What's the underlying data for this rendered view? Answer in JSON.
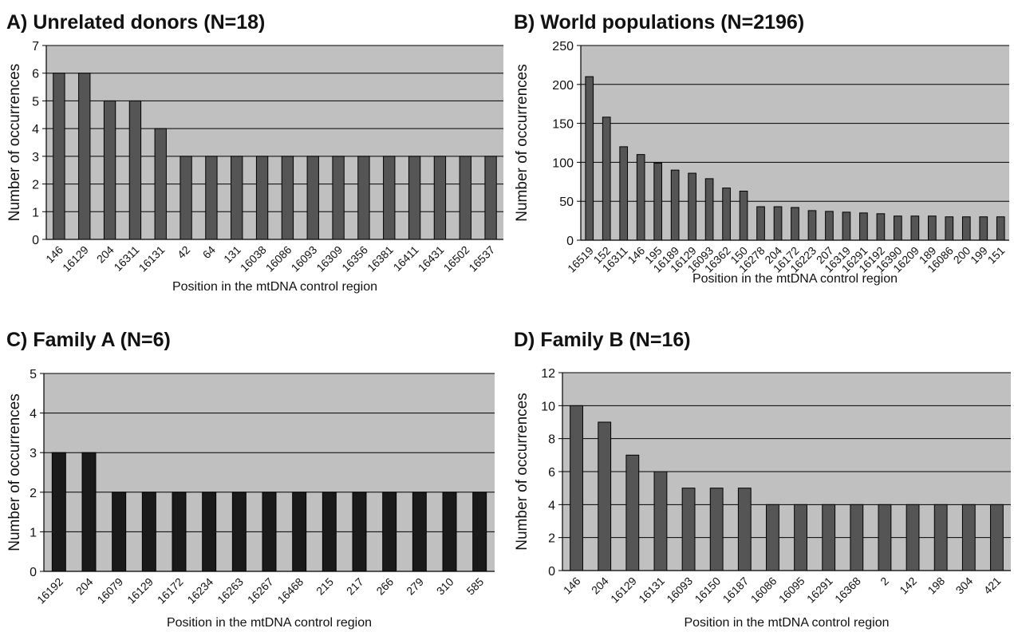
{
  "chart_data": [
    {
      "id": "A",
      "type": "bar",
      "title": "A) Unrelated donors (N=18)",
      "xlabel": "Position in the mtDNA control region",
      "ylabel": "Number of occurrences",
      "categories": [
        "146",
        "16129",
        "204",
        "16311",
        "16131",
        "42",
        "64",
        "131",
        "16038",
        "16086",
        "16093",
        "16309",
        "16356",
        "16381",
        "16411",
        "16431",
        "16502",
        "16537"
      ],
      "values": [
        6,
        6,
        5,
        5,
        4,
        3,
        3,
        3,
        3,
        3,
        3,
        3,
        3,
        3,
        3,
        3,
        3,
        3
      ],
      "ylim": [
        0,
        7
      ],
      "yticks": [
        "0",
        "1",
        "2",
        "3",
        "4",
        "5",
        "6",
        "7"
      ],
      "grid": true,
      "bar_color": "#555555"
    },
    {
      "id": "B",
      "type": "bar",
      "title": "B) World populations (N=2196)",
      "xlabel": "Position in the mtDNA control region",
      "ylabel": "Number of occurrences",
      "categories": [
        "16519",
        "152",
        "16311",
        "146",
        "195",
        "16189",
        "16129",
        "16093",
        "16362",
        "150",
        "16278",
        "204",
        "16172",
        "16223",
        "207",
        "16319",
        "16291",
        "16192",
        "16390",
        "16209",
        "189",
        "16086",
        "200",
        "199",
        "151"
      ],
      "values": [
        210,
        158,
        120,
        110,
        99,
        90,
        86,
        79,
        67,
        63,
        43,
        43,
        42,
        38,
        37,
        36,
        35,
        34,
        31,
        31,
        31,
        30,
        30,
        30,
        30
      ],
      "ylim": [
        0,
        250
      ],
      "yticks": [
        "0",
        "50",
        "100",
        "150",
        "200",
        "250"
      ],
      "grid": true,
      "bar_color": "#555555"
    },
    {
      "id": "C",
      "type": "bar",
      "title": "C) Family A (N=6)",
      "xlabel": "Position in the mtDNA control region",
      "ylabel": "Number of occurrences",
      "categories": [
        "16192",
        "204",
        "16079",
        "16129",
        "16172",
        "16234",
        "16263",
        "16267",
        "16468",
        "215",
        "217",
        "266",
        "279",
        "310",
        "585"
      ],
      "values": [
        3,
        3,
        2,
        2,
        2,
        2,
        2,
        2,
        2,
        2,
        2,
        2,
        2,
        2,
        2
      ],
      "ylim": [
        0,
        5
      ],
      "yticks": [
        "0",
        "1",
        "2",
        "3",
        "4",
        "5"
      ],
      "grid": true,
      "bar_color": "#1a1a1a"
    },
    {
      "id": "D",
      "type": "bar",
      "title": "D) Family B (N=16)",
      "xlabel": "Position in the mtDNA control region",
      "ylabel": "Number of occurrences",
      "categories": [
        "146",
        "204",
        "16129",
        "16131",
        "16093",
        "16150",
        "16187",
        "16086",
        "16095",
        "16291",
        "16368",
        "2",
        "142",
        "198",
        "304",
        "421"
      ],
      "values": [
        10,
        9,
        7,
        6,
        5,
        5,
        5,
        4,
        4,
        4,
        4,
        4,
        4,
        4,
        4,
        4
      ],
      "ylim": [
        0,
        12
      ],
      "yticks": [
        "0",
        "2",
        "4",
        "6",
        "8",
        "10",
        "12"
      ],
      "grid": true,
      "bar_color": "#555555"
    }
  ]
}
